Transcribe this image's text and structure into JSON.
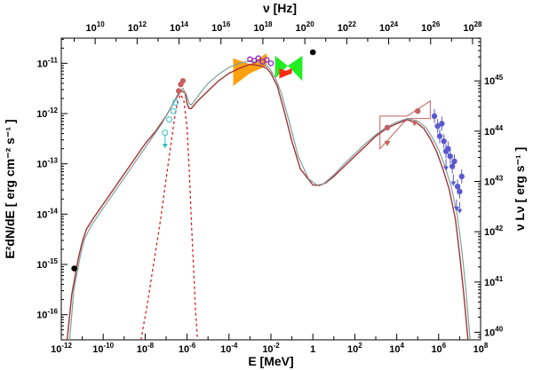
{
  "chart_data": {
    "type": "scatter",
    "xlabel": "E [MeV]",
    "ylabel": "E²dN/dE [ erg cm⁻² s⁻¹ ]",
    "top_xlabel": "ν [Hz]",
    "right_ylabel": "ν Lν [ erg s⁻¹ ]",
    "x_scale": "log",
    "y_scale": "log",
    "xlim_log10": [
      -12,
      8
    ],
    "ylim_log10": [
      -16.5,
      -10.5
    ],
    "bottom_ticks": [
      {
        "base": "10",
        "exp": "-12",
        "v": -12
      },
      {
        "base": "10",
        "exp": "-10",
        "v": -10
      },
      {
        "base": "10",
        "exp": "-8",
        "v": -8
      },
      {
        "base": "10",
        "exp": "-6",
        "v": -6
      },
      {
        "base": "10",
        "exp": "-4",
        "v": -4
      },
      {
        "base": "10",
        "exp": "-2",
        "v": -2
      },
      {
        "base": "1",
        "exp": "",
        "v": 0
      },
      {
        "base": "10",
        "exp": "2",
        "v": 2
      },
      {
        "base": "10",
        "exp": "4",
        "v": 4
      },
      {
        "base": "10",
        "exp": "6",
        "v": 6
      },
      {
        "base": "10",
        "exp": "8",
        "v": 8
      }
    ],
    "top_ticks": [
      {
        "base": "10",
        "exp": "10",
        "v": 10
      },
      {
        "base": "10",
        "exp": "12",
        "v": 12
      },
      {
        "base": "10",
        "exp": "14",
        "v": 14
      },
      {
        "base": "10",
        "exp": "16",
        "v": 16
      },
      {
        "base": "10",
        "exp": "18",
        "v": 18
      },
      {
        "base": "10",
        "exp": "20",
        "v": 20
      },
      {
        "base": "10",
        "exp": "22",
        "v": 22
      },
      {
        "base": "10",
        "exp": "24",
        "v": 24
      },
      {
        "base": "10",
        "exp": "26",
        "v": 26
      },
      {
        "base": "10",
        "exp": "28",
        "v": 28
      }
    ],
    "left_ticks": [
      {
        "base": "10",
        "exp": "-11",
        "v": -11
      },
      {
        "base": "10",
        "exp": "-12",
        "v": -12
      },
      {
        "base": "10",
        "exp": "-13",
        "v": -13
      },
      {
        "base": "10",
        "exp": "-14",
        "v": -14
      },
      {
        "base": "10",
        "exp": "-15",
        "v": -15
      },
      {
        "base": "10",
        "exp": "-16",
        "v": -16
      }
    ],
    "right_ticks": [
      {
        "base": "10",
        "exp": "45",
        "v": 45
      },
      {
        "base": "10",
        "exp": "44",
        "v": 44
      },
      {
        "base": "10",
        "exp": "43",
        "v": 43
      },
      {
        "base": "10",
        "exp": "42",
        "v": 42
      },
      {
        "base": "10",
        "exp": "41",
        "v": 41
      },
      {
        "base": "10",
        "exp": "40",
        "v": 40
      }
    ],
    "colors": {
      "model_dark": "#a23333",
      "model_light": "#7f9f9f",
      "dashed": "#d01010",
      "red_points": "#c86060",
      "blue_points": "#5a5acc",
      "cyan_points": "#30c0c0",
      "purple_points": "#9020c0",
      "orange_band": "#ffa010",
      "green_band": "#20ee20",
      "red_band": "#ff2a10",
      "black_points": "#000000"
    },
    "series": [
      {
        "style": "model-dark",
        "x_log10": [
          -11.72,
          -11.5,
          -11.2,
          -11.0,
          -10.8,
          -10.5,
          -10.0,
          -9.5,
          -9.0,
          -8.5,
          -8.0,
          -7.5,
          -7.0,
          -6.6,
          -6.3,
          -6.1,
          -6.0,
          -5.9,
          -5.8,
          -5.7,
          -5.5,
          -5.0,
          -4.5,
          -4.0,
          -3.5,
          -3.0,
          -2.5,
          -2.2,
          -2.0,
          -1.7,
          -1.4,
          -1.0,
          -0.6,
          0.0,
          0.3,
          0.6,
          1.0,
          1.5,
          2.0,
          2.5,
          3.0,
          3.5,
          4.0,
          4.5,
          5.0,
          5.3,
          5.6,
          5.9,
          6.2,
          6.5,
          6.8,
          7.0,
          7.2,
          7.4
        ],
        "y_log10": [
          -16.5,
          -15.6,
          -14.9,
          -14.55,
          -14.3,
          -14.1,
          -13.8,
          -13.5,
          -13.2,
          -12.9,
          -12.6,
          -12.35,
          -12.05,
          -11.75,
          -11.55,
          -11.58,
          -11.8,
          -11.9,
          -11.9,
          -11.85,
          -11.75,
          -11.55,
          -11.35,
          -11.2,
          -11.1,
          -11.02,
          -11.05,
          -11.1,
          -11.2,
          -11.45,
          -11.9,
          -12.55,
          -13.1,
          -13.42,
          -13.43,
          -13.38,
          -13.25,
          -13.05,
          -12.85,
          -12.65,
          -12.45,
          -12.3,
          -12.2,
          -12.12,
          -12.2,
          -12.3,
          -12.5,
          -12.75,
          -13.1,
          -13.5,
          -14.1,
          -14.8,
          -15.6,
          -16.5
        ]
      },
      {
        "style": "model-light",
        "x_log10": [
          -11.6,
          -11.4,
          -11.1,
          -10.9,
          -10.6,
          -10.2,
          -9.7,
          -9.2,
          -8.7,
          -8.2,
          -7.7,
          -7.2,
          -6.8,
          -6.45,
          -6.2,
          -6.0,
          -5.9,
          -5.8,
          -5.6,
          -5.3,
          -5.0,
          -4.5,
          -4.0,
          -3.5,
          -3.0,
          -2.5,
          -2.1,
          -1.8,
          -1.5,
          -1.1,
          -0.7,
          -0.2,
          0.2,
          0.5,
          1.0,
          1.5,
          2.0,
          2.5,
          3.0,
          3.5,
          4.0,
          4.5,
          5.0,
          5.4,
          5.7,
          6.0,
          6.3,
          6.6,
          6.9,
          7.1,
          7.3,
          7.5
        ],
        "y_log10": [
          -16.5,
          -15.5,
          -14.85,
          -14.5,
          -14.25,
          -14.0,
          -13.7,
          -13.4,
          -13.1,
          -12.8,
          -12.5,
          -12.2,
          -11.9,
          -11.62,
          -11.5,
          -11.65,
          -11.8,
          -11.83,
          -11.72,
          -11.55,
          -11.4,
          -11.22,
          -11.08,
          -11.0,
          -10.95,
          -10.98,
          -11.08,
          -11.28,
          -11.6,
          -12.2,
          -12.85,
          -13.3,
          -13.42,
          -13.4,
          -13.22,
          -13.0,
          -12.8,
          -12.6,
          -12.42,
          -12.27,
          -12.17,
          -12.1,
          -12.15,
          -12.28,
          -12.48,
          -12.72,
          -13.05,
          -13.45,
          -14.05,
          -14.7,
          -15.5,
          -16.5
        ]
      },
      {
        "style": "dashed",
        "x_log10": [
          -8.2,
          -7.9,
          -7.6,
          -7.3,
          -7.0,
          -6.8,
          -6.6,
          -6.45,
          -6.3,
          -6.15,
          -6.0,
          -5.9,
          -5.8,
          -5.7,
          -5.6,
          -5.5
        ],
        "y_log10": [
          -16.5,
          -15.8,
          -15.0,
          -14.2,
          -13.3,
          -12.7,
          -12.1,
          -11.75,
          -11.62,
          -11.75,
          -12.3,
          -13.1,
          -14.1,
          -15.0,
          -15.9,
          -16.5
        ]
      }
    ],
    "points": [
      {
        "group": "black",
        "x_log10": -11.38,
        "y_log10": -15.08
      },
      {
        "group": "black",
        "x_log10": 0.0,
        "y_log10": -10.78
      },
      {
        "group": "cyan-open",
        "x_log10": -7.05,
        "y_log10": -12.38
      },
      {
        "group": "cyan-open",
        "x_log10": -6.85,
        "y_log10": -12.12
      },
      {
        "group": "cyan-open",
        "x_log10": -6.65,
        "y_log10": -11.95
      },
      {
        "group": "cyan-open",
        "x_log10": -6.55,
        "y_log10": -11.78
      },
      {
        "group": "cyan-ul",
        "x_log10": -7.05,
        "y_log10": -12.6
      },
      {
        "group": "red",
        "x_log10": -6.4,
        "y_log10": -11.55
      },
      {
        "group": "red",
        "x_log10": -6.3,
        "y_log10": -11.42
      },
      {
        "group": "red",
        "x_log10": -6.2,
        "y_log10": -11.35
      },
      {
        "group": "red",
        "x_log10": 3.55,
        "y_log10": -12.28
      },
      {
        "group": "red",
        "x_log10": 5.0,
        "y_log10": -11.95
      },
      {
        "group": "red-ul",
        "x_log10": 3.55,
        "y_log10": -12.58
      },
      {
        "group": "red-ul",
        "x_log10": 4.85,
        "y_log10": -12.18
      },
      {
        "group": "purple",
        "x_log10": -3.0,
        "y_log10": -10.92
      },
      {
        "group": "purple",
        "x_log10": -2.8,
        "y_log10": -10.95
      },
      {
        "group": "purple",
        "x_log10": -2.6,
        "y_log10": -10.9
      },
      {
        "group": "purple",
        "x_log10": -2.4,
        "y_log10": -10.97
      },
      {
        "group": "purple",
        "x_log10": -2.2,
        "y_log10": -10.93
      },
      {
        "group": "purple",
        "x_log10": -2.0,
        "y_log10": -11.0
      },
      {
        "group": "blue",
        "x_log10": 5.8,
        "y_log10": -12.05
      },
      {
        "group": "blue",
        "x_log10": 5.95,
        "y_log10": -12.25
      },
      {
        "group": "blue",
        "x_log10": 6.05,
        "y_log10": -12.45
      },
      {
        "group": "blue",
        "x_log10": 6.15,
        "y_log10": -12.2
      },
      {
        "group": "blue",
        "x_log10": 6.25,
        "y_log10": -12.55
      },
      {
        "group": "blue",
        "x_log10": 6.35,
        "y_log10": -12.75
      },
      {
        "group": "blue",
        "x_log10": 6.45,
        "y_log10": -12.7
      },
      {
        "group": "blue",
        "x_log10": 6.55,
        "y_log10": -12.85
      },
      {
        "group": "blue",
        "x_log10": 6.65,
        "y_log10": -13.05
      },
      {
        "group": "blue",
        "x_log10": 6.75,
        "y_log10": -12.95
      },
      {
        "group": "blue",
        "x_log10": 6.9,
        "y_log10": -13.45
      },
      {
        "group": "blue",
        "x_log10": 7.0,
        "y_log10": -13.55
      },
      {
        "group": "blue",
        "x_log10": 7.1,
        "y_log10": -13.25
      },
      {
        "group": "blue-ul",
        "x_log10": 6.35,
        "y_log10": -13.05
      },
      {
        "group": "blue-ul",
        "x_log10": 6.7,
        "y_log10": -13.35
      },
      {
        "group": "blue-ul",
        "x_log10": 6.85,
        "y_log10": -13.85
      },
      {
        "group": "blue-ul",
        "x_log10": 7.0,
        "y_log10": -13.9
      }
    ],
    "bands": [
      {
        "name": "orange",
        "x_log10": [
          -3.8,
          -3.0,
          -2.2
        ],
        "y_low": [
          -11.45,
          -11.2,
          -11.05
        ],
        "y_high": [
          -10.9,
          -11.02,
          -10.8
        ]
      },
      {
        "name": "green",
        "x_log10": [
          -1.8,
          -1.2,
          -0.5
        ],
        "y_low": [
          -11.3,
          -11.05,
          -11.35
        ],
        "y_high": [
          -10.85,
          -11.05,
          -10.85
        ]
      },
      {
        "name": "red",
        "x_log10": [
          -1.6,
          -1.3,
          -1.0
        ],
        "y_low": [
          -11.3,
          -11.25,
          -11.2
        ],
        "y_high": [
          -11.1,
          -11.15,
          -11.1
        ]
      }
    ],
    "butterflies": [
      {
        "x_log10": [
          3.2,
          4.5,
          5.6
        ],
        "y_low": [
          -12.7,
          -12.1,
          -12.1
        ],
        "y_high": [
          -12.05,
          -12.05,
          -11.75
        ]
      }
    ]
  }
}
